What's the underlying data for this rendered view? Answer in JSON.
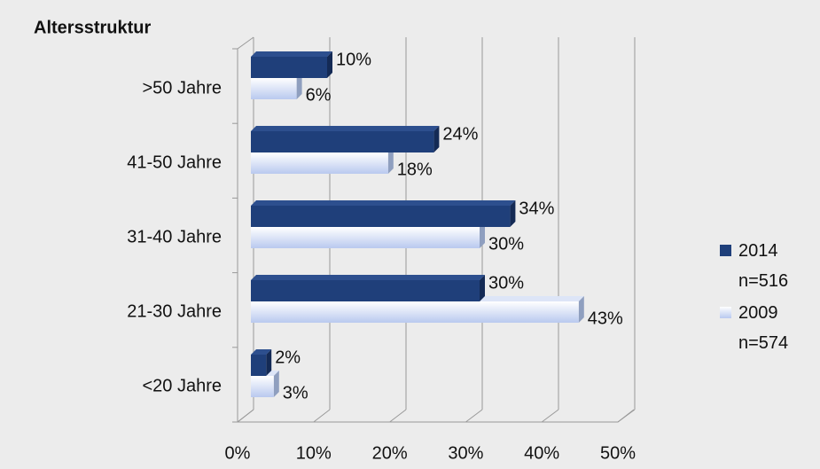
{
  "chart_data": {
    "type": "bar",
    "orientation": "horizontal",
    "title": "Altersstruktur",
    "categories": [
      ">50 Jahre",
      "41-50 Jahre",
      "31-40 Jahre",
      "21-30 Jahre",
      "<20 Jahre"
    ],
    "series": [
      {
        "name": "2014 n=516",
        "color": "#1f3f7a",
        "values": [
          10,
          24,
          34,
          30,
          2
        ],
        "value_labels": [
          "10%",
          "24%",
          "34%",
          "30%",
          "2%"
        ]
      },
      {
        "name": "2009 n=574",
        "color": "#b9c9ef",
        "values": [
          6,
          18,
          30,
          43,
          3
        ],
        "value_labels": [
          "6%",
          "18%",
          "30%",
          "43%",
          "3%"
        ]
      }
    ],
    "xlim": [
      0,
      50
    ],
    "xticks": [
      {
        "value": 0,
        "label": "0%"
      },
      {
        "value": 10,
        "label": "10%"
      },
      {
        "value": 20,
        "label": "20%"
      },
      {
        "value": 30,
        "label": "30%"
      },
      {
        "value": 40,
        "label": "40%"
      },
      {
        "value": 50,
        "label": "50%"
      }
    ],
    "grid": true,
    "legend": "right"
  }
}
